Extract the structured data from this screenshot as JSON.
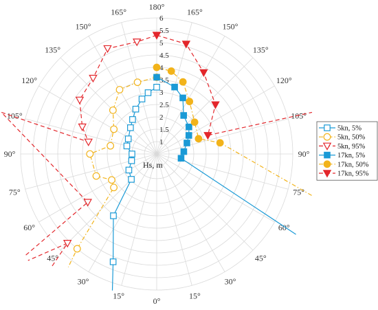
{
  "chart_data": {
    "type": "polar-line",
    "rlabel": "Hs, m",
    "rlim": [
      0.5,
      6
    ],
    "radial_ticks": [
      1,
      1.5,
      2,
      2.5,
      3,
      3.5,
      4,
      4.5,
      5,
      5.5,
      6
    ],
    "radial_tick_labels": [
      "1",
      "1.5",
      "2",
      "2.5",
      "3",
      "3.5",
      "4",
      "4.5",
      "5",
      "5.5",
      "6"
    ],
    "angle_ticks": [
      {
        "label": "0°",
        "side": "bottom"
      },
      {
        "label": "15°",
        "side": "right"
      },
      {
        "label": "30°",
        "side": "right"
      },
      {
        "label": "45°",
        "side": "right"
      },
      {
        "label": "60°",
        "side": "right"
      },
      {
        "label": "75°",
        "side": "right"
      },
      {
        "label": "90°",
        "side": "right"
      },
      {
        "label": "105°",
        "side": "right"
      },
      {
        "label": "120°",
        "side": "right"
      },
      {
        "label": "135°",
        "side": "right"
      },
      {
        "label": "150°",
        "side": "right"
      },
      {
        "label": "165°",
        "side": "right"
      },
      {
        "label": "180°",
        "side": "top"
      },
      {
        "label": "165°",
        "side": "left"
      },
      {
        "label": "150°",
        "side": "left"
      },
      {
        "label": "135°",
        "side": "left"
      },
      {
        "label": "120°",
        "side": "left"
      },
      {
        "label": "105°",
        "side": "left"
      },
      {
        "label": "90°",
        "side": "left"
      },
      {
        "label": "75°",
        "side": "left"
      },
      {
        "label": "60°",
        "side": "left"
      },
      {
        "label": "45°",
        "side": "left"
      },
      {
        "label": "30°",
        "side": "left"
      },
      {
        "label": "15°",
        "side": "left"
      }
    ],
    "grid": true,
    "legend_position": "right",
    "series": [
      {
        "name": "5kn, 5%",
        "color": "#1a9ad6",
        "line": "solid",
        "marker": "square-open",
        "side": "left",
        "points": [
          [
            180,
            3.2
          ],
          [
            172,
            3.0
          ],
          [
            165,
            2.8
          ],
          [
            155,
            2.5
          ],
          [
            145,
            2.2
          ],
          [
            135,
            2.0
          ],
          [
            118,
            1.8
          ],
          [
            105,
            1.75
          ],
          [
            90,
            1.5
          ],
          [
            75,
            1.55
          ],
          [
            60,
            1.8
          ],
          [
            45,
            1.95
          ],
          [
            35,
            3.55
          ],
          [
            22,
            5.2
          ],
          [
            18,
            6.3
          ]
        ]
      },
      {
        "name": "5kn, 50%",
        "color": "#f2b31a",
        "line": "dashdot",
        "marker": "circle-open",
        "side": "left",
        "points": [
          [
            180,
            3.6
          ],
          [
            165,
            3.5
          ],
          [
            150,
            3.5
          ],
          [
            135,
            3.0
          ],
          [
            120,
            2.5
          ],
          [
            100,
            2.4
          ],
          [
            90,
            3.2
          ],
          [
            70,
            3.1
          ],
          [
            60,
            2.6
          ],
          [
            52,
            2.7
          ],
          [
            40,
            5.5
          ],
          [
            38,
            6.3
          ]
        ]
      },
      {
        "name": "5kn, 95%",
        "color": "#e3262b",
        "line": "dashed",
        "marker": "triangle-down-open",
        "side": "left",
        "points": [
          [
            180,
            5.3
          ],
          [
            170,
            5.1
          ],
          [
            155,
            5.2
          ],
          [
            140,
            4.5
          ],
          [
            125,
            4.3
          ],
          [
            110,
            3.7
          ],
          [
            100,
            3.3
          ],
          [
            105,
            7.0
          ],
          [
            55,
            3.9
          ],
          [
            52,
            8.0
          ],
          [
            45,
            5.6
          ],
          [
            43,
            6.7
          ]
        ]
      },
      {
        "name": "17kn, 5%",
        "color": "#1a9ad6",
        "line": "solid",
        "marker": "square-filled",
        "side": "right",
        "points": [
          [
            180,
            3.6
          ],
          [
            165,
            3.3
          ],
          [
            155,
            3.0
          ],
          [
            145,
            2.4
          ],
          [
            130,
            2.2
          ],
          [
            120,
            2.0
          ],
          [
            110,
            1.8
          ],
          [
            95,
            1.6
          ],
          [
            80,
            1.5
          ],
          [
            60,
            7.0
          ]
        ]
      },
      {
        "name": "17kn, 50%",
        "color": "#f2b31a",
        "line": "dashdot",
        "marker": "circle-filled",
        "side": "right",
        "points": [
          [
            180,
            4.0
          ],
          [
            170,
            3.9
          ],
          [
            160,
            3.6
          ],
          [
            148,
            3.0
          ],
          [
            130,
            2.5
          ],
          [
            110,
            2.3
          ],
          [
            100,
            3.1
          ],
          [
            75,
            7.0
          ]
        ]
      },
      {
        "name": "17kn, 95%",
        "color": "#e3262b",
        "line": "dashed",
        "marker": "triangle-down-filled",
        "side": "right",
        "points": [
          [
            180,
            5.3
          ],
          [
            165,
            5.1
          ],
          [
            150,
            4.3
          ],
          [
            130,
            3.6
          ],
          [
            110,
            2.7
          ],
          [
            105,
            7.0
          ]
        ]
      }
    ]
  }
}
